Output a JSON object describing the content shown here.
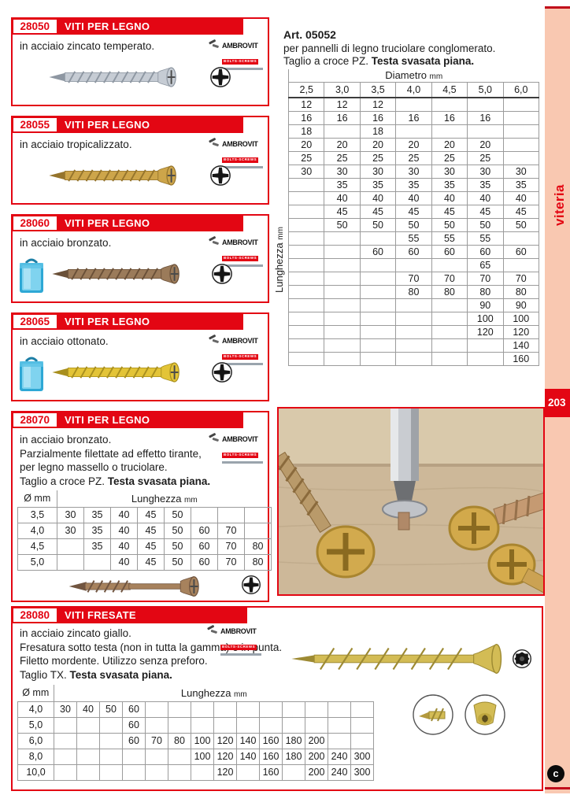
{
  "colors": {
    "accent_red": "#e30613",
    "sidebar_salmon": "#f9c8b1",
    "dark_red_line": "#c10a1a"
  },
  "sidebar": {
    "label": "viteria",
    "page_number": "203",
    "copyright_mark": "c"
  },
  "brand": {
    "name": "AMBROVIT",
    "tagline": "BOLTS-SCREWS"
  },
  "products": [
    {
      "code": "28050",
      "title": "VITI PER LEGNO",
      "line1": "in acciaio zincato temperato."
    },
    {
      "code": "28055",
      "title": "VITI PER LEGNO",
      "line1": "in acciaio tropicalizzato."
    },
    {
      "code": "28060",
      "title": "VITI PER LEGNO",
      "line1": "in acciaio bronzato."
    },
    {
      "code": "28065",
      "title": "VITI PER LEGNO",
      "line1": "in acciaio ottonato."
    },
    {
      "code": "28070",
      "title": "VITI PER LEGNO",
      "line1": "in acciaio bronzato.",
      "line2": "Parzialmente filettate ad effetto tirante,",
      "line3": "per legno massello o truciolare.",
      "line4_normal": "Taglio a croce PZ. ",
      "line4_bold": "Testa svasata piana."
    },
    {
      "code": "28080",
      "title": "VITI FRESATE",
      "line1": "in acciaio zincato giallo.",
      "line2": "Fresatura sotto testa (non in tutta la gamma) e in punta.",
      "line3": "Filetto mordente. Utilizzo senza preforo.",
      "line4_normal": "Taglio TX. ",
      "line4_bold": "Testa svasata piana."
    }
  ],
  "art_block": {
    "art_no": "Art. 05052",
    "line1": "per pannelli di legno truciolare conglomerato.",
    "line2_normal": "Taglio a croce PZ. ",
    "line2_bold": "Testa svasata piana.",
    "diameter_label": "Diametro",
    "diameter_unit": "mm",
    "length_label": "Lunghezza",
    "length_unit": "mm",
    "diameters": [
      "2,5",
      "3,0",
      "3,5",
      "4,0",
      "4,5",
      "5,0",
      "6,0"
    ],
    "rows": [
      [
        "12",
        "12",
        "12",
        "",
        "",
        "",
        ""
      ],
      [
        "16",
        "16",
        "16",
        "16",
        "16",
        "16",
        ""
      ],
      [
        "18",
        "",
        "18",
        "",
        "",
        "",
        ""
      ],
      [
        "20",
        "20",
        "20",
        "20",
        "20",
        "20",
        ""
      ],
      [
        "25",
        "25",
        "25",
        "25",
        "25",
        "25",
        ""
      ],
      [
        "30",
        "30",
        "30",
        "30",
        "30",
        "30",
        "30"
      ],
      [
        "",
        "35",
        "35",
        "35",
        "35",
        "35",
        "35"
      ],
      [
        "",
        "40",
        "40",
        "40",
        "40",
        "40",
        "40"
      ],
      [
        "",
        "45",
        "45",
        "45",
        "45",
        "45",
        "45"
      ],
      [
        "",
        "50",
        "50",
        "50",
        "50",
        "50",
        "50"
      ],
      [
        "",
        "",
        "",
        "55",
        "55",
        "55",
        ""
      ],
      [
        "",
        "",
        "60",
        "60",
        "60",
        "60",
        "60"
      ],
      [
        "",
        "",
        "",
        "",
        "",
        "65",
        ""
      ],
      [
        "",
        "",
        "",
        "70",
        "70",
        "70",
        "70"
      ],
      [
        "",
        "",
        "",
        "80",
        "80",
        "80",
        "80"
      ],
      [
        "",
        "",
        "",
        "",
        "",
        "90",
        "90"
      ],
      [
        "",
        "",
        "",
        "",
        "",
        "100",
        "100"
      ],
      [
        "",
        "",
        "",
        "",
        "",
        "120",
        "120"
      ],
      [
        "",
        "",
        "",
        "",
        "",
        "",
        "140"
      ],
      [
        "",
        "",
        "",
        "",
        "",
        "",
        "160"
      ]
    ]
  },
  "table_28070": {
    "diam_header": "Ø mm",
    "length_label": "Lunghezza",
    "length_unit": "mm",
    "rows": [
      [
        "3,5",
        "30",
        "35",
        "40",
        "45",
        "50",
        "",
        "",
        ""
      ],
      [
        "4,0",
        "30",
        "35",
        "40",
        "45",
        "50",
        "60",
        "70",
        ""
      ],
      [
        "4,5",
        "",
        "35",
        "40",
        "45",
        "50",
        "60",
        "70",
        "80"
      ],
      [
        "5,0",
        "",
        "",
        "40",
        "45",
        "50",
        "60",
        "70",
        "80"
      ]
    ]
  },
  "table_28080": {
    "diam_header": "Ø mm",
    "length_label": "Lunghezza",
    "length_unit": "mm",
    "rows": [
      [
        "4,0",
        "30",
        "40",
        "50",
        "60",
        "",
        "",
        "",
        "",
        "",
        "",
        "",
        "",
        "",
        ""
      ],
      [
        "5,0",
        "",
        "",
        "",
        "60",
        "",
        "",
        "",
        "",
        "",
        "",
        "",
        "",
        "",
        ""
      ],
      [
        "6,0",
        "",
        "",
        "",
        "60",
        "70",
        "80",
        "100",
        "120",
        "140",
        "160",
        "180",
        "200",
        "",
        ""
      ],
      [
        "8,0",
        "",
        "",
        "",
        "",
        "",
        "",
        "100",
        "120",
        "140",
        "160",
        "180",
        "200",
        "240",
        "300"
      ],
      [
        "10,0",
        "",
        "",
        "",
        "",
        "",
        "",
        "",
        "120",
        "",
        "160",
        "",
        "200",
        "240",
        "300"
      ]
    ]
  }
}
